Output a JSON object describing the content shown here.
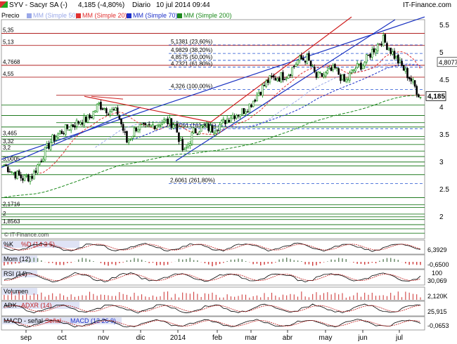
{
  "header": {
    "symbol": "SYV - Sacyr SA (-)",
    "last": "4,185 (-4,80%)",
    "period": "Diario",
    "datetime": "10 jul 2014 09:44",
    "brand": "IT-Finance.com",
    "watermark": "© IT-Finance.com"
  },
  "legend": {
    "price": "Precio",
    "mm50": "MM (Simple 50)",
    "mm20": "MM (Simple 20)",
    "mm70": "MM (Simple 70)",
    "mm200": "MM (Simple 200)"
  },
  "colors": {
    "up": "#0a8a0a",
    "down": "#000000",
    "mm20": "#e03030",
    "mm50": "#9aa8e8",
    "mm70": "#1c2fc8",
    "mm200": "#1c8a1c",
    "hline_green": "#1f7a1f",
    "hline_red": "#b02020",
    "trend_blue": "#1830c0",
    "trend_red": "#d02020",
    "fib_blue": "#2050d0",
    "panel_label_bg": "#dfe3f5",
    "mom_red": "#d04040",
    "vol_red": "#cc3030"
  },
  "chart_data": [
    {
      "type": "candlestick",
      "panel": "price",
      "x_labels": [
        "sep",
        "oct",
        "nov",
        "dic",
        "2014",
        "feb",
        "mar",
        "abr",
        "may",
        "jun",
        "jul"
      ],
      "y_ticks": [
        2,
        2.5,
        3,
        3.5,
        4,
        4.5,
        5,
        5.5
      ],
      "ylim": [
        1.7,
        5.6
      ],
      "last_value": "4,185",
      "right_labels": [
        "4,8077"
      ],
      "horizontal_levels": [
        "5,35",
        "5,13",
        "4,7668",
        "4,55",
        "3,465",
        "3,32",
        "3,2",
        "3,0005",
        "2,1716",
        "2",
        "1,8563"
      ],
      "fib_labels": [
        "5,1381 (23,60%)",
        "4,9829 (38,20%)",
        "4,8575 (50,00%)",
        "4,7321 (61,80%)",
        "4,326 (100,00%)",
        "3,6091 (161,80%)",
        "2,6061 (261,80%)"
      ],
      "anchors": [
        {
          "week": 0,
          "price": 2.95
        },
        {
          "week": 1,
          "price": 2.8
        },
        {
          "week": 2,
          "price": 2.7
        },
        {
          "week": 3,
          "price": 2.75
        },
        {
          "week": 4,
          "price": 3.1
        },
        {
          "week": 5,
          "price": 3.4
        },
        {
          "week": 6,
          "price": 3.55
        },
        {
          "week": 7,
          "price": 3.65
        },
        {
          "week": 8,
          "price": 3.75
        },
        {
          "week": 9,
          "price": 3.8
        },
        {
          "week": 10,
          "price": 4.05
        },
        {
          "week": 11,
          "price": 3.95
        },
        {
          "week": 12,
          "price": 3.9
        },
        {
          "week": 13,
          "price": 3.35
        },
        {
          "week": 14,
          "price": 3.65
        },
        {
          "week": 15,
          "price": 3.6
        },
        {
          "week": 16,
          "price": 3.7
        },
        {
          "week": 17,
          "price": 3.75
        },
        {
          "week": 18,
          "price": 3.7
        },
        {
          "week": 19,
          "price": 3.15
        },
        {
          "week": 20,
          "price": 3.55
        },
        {
          "week": 21,
          "price": 3.65
        },
        {
          "week": 22,
          "price": 3.6
        },
        {
          "week": 23,
          "price": 3.7
        },
        {
          "week": 24,
          "price": 3.85
        },
        {
          "week": 25,
          "price": 3.9
        },
        {
          "week": 26,
          "price": 4.05
        },
        {
          "week": 27,
          "price": 4.3
        },
        {
          "week": 28,
          "price": 4.5
        },
        {
          "week": 29,
          "price": 4.55
        },
        {
          "week": 30,
          "price": 4.6
        },
        {
          "week": 31,
          "price": 4.85
        },
        {
          "week": 32,
          "price": 4.9
        },
        {
          "week": 33,
          "price": 4.55
        },
        {
          "week": 34,
          "price": 4.6
        },
        {
          "week": 35,
          "price": 4.7
        },
        {
          "week": 36,
          "price": 4.45
        },
        {
          "week": 37,
          "price": 4.7
        },
        {
          "week": 38,
          "price": 4.8
        },
        {
          "week": 39,
          "price": 5.05
        },
        {
          "week": 40,
          "price": 5.25
        },
        {
          "week": 41,
          "price": 5.0
        },
        {
          "week": 42,
          "price": 4.75
        },
        {
          "week": 43,
          "price": 4.5
        },
        {
          "week": 44,
          "price": 4.185
        }
      ]
    },
    {
      "type": "line",
      "panel": "%K %D",
      "label": "%K",
      "label2": "%D (14 3 5)",
      "last_value": "6,3929"
    },
    {
      "type": "area",
      "panel": "momentum",
      "label": "Mom (12)",
      "last_value": "-0,6500"
    },
    {
      "type": "line",
      "panel": "rsi",
      "label": "RSI (14)",
      "y_ticks": [
        "100"
      ],
      "last_value": "30,069"
    },
    {
      "type": "bar",
      "panel": "volume",
      "label": "Volumen",
      "last_value": "2,120K"
    },
    {
      "type": "line",
      "panel": "adx",
      "label": "ADX",
      "label2": "ADXR (14)",
      "last_value": "25,915"
    },
    {
      "type": "line",
      "panel": "macd",
      "label": "MACD - señal",
      "label2": "Señal",
      "label3": "MACD (12 26 9)",
      "last_value": "-0,0653"
    }
  ]
}
